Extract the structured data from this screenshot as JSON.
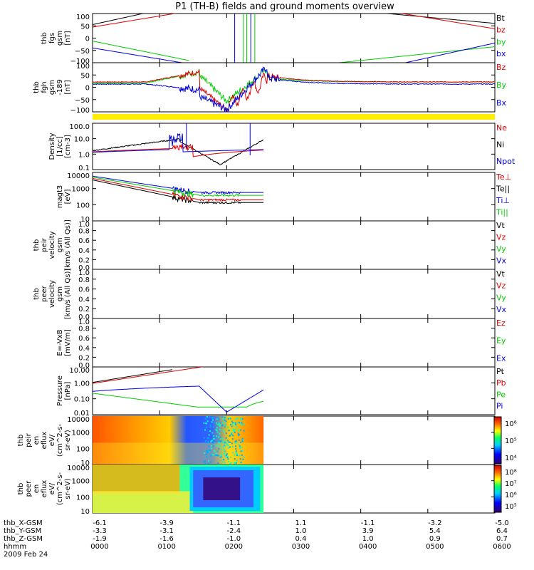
{
  "title": "P1 (TH-B) fields and ground moments overview",
  "date_label": "2009 Feb 24",
  "colors": {
    "black": "#000000",
    "red": "#dd0000",
    "green": "#00cc00",
    "blue": "#0000dd",
    "yellow": "#ffee00"
  },
  "chart_data": [
    {
      "type": "line",
      "panel": "fgs",
      "ylabel": [
        "thb",
        "fgs",
        "gsm",
        "[nT]"
      ],
      "yticks": [
        "100",
        "50",
        "0",
        "−50",
        "−100"
      ],
      "ylim": [
        -100,
        100
      ],
      "legend": [
        {
          "label": "Bt",
          "color": "#000000"
        },
        {
          "label": "bz",
          "color": "#dd0000"
        },
        {
          "label": "by",
          "color": "#00cc00"
        },
        {
          "label": "bx",
          "color": "#0000dd"
        }
      ]
    },
    {
      "type": "line",
      "panel": "fgh",
      "ylabel": [
        "thb",
        "fgh",
        "gsm",
        "-189",
        "[nT]"
      ],
      "yticks": [
        "100",
        "50",
        "0",
        "−50",
        "−100"
      ],
      "ylim": [
        -130,
        100
      ],
      "legend": [
        {
          "label": "Bz",
          "color": "#dd0000"
        },
        {
          "label": "By",
          "color": "#00cc00"
        },
        {
          "label": "Bx",
          "color": "#0000dd"
        }
      ]
    },
    {
      "type": "line",
      "panel": "density",
      "ylabel": [
        "Density",
        "[1/cc]",
        "[cm-3]"
      ],
      "yticks": [
        "100.0",
        "10.0",
        "1.0",
        "0.1"
      ],
      "ylim": [
        0.05,
        200
      ],
      "log": true,
      "legend": [
        {
          "label": "Ne",
          "color": "#dd0000"
        },
        {
          "label": "Ni",
          "color": "#000000"
        },
        {
          "label": "Npot",
          "color": "#0000dd"
        }
      ]
    },
    {
      "type": "line",
      "panel": "temperature",
      "ylabel": [
        "magt3",
        "[eV]"
      ],
      "yticks": [
        "10000",
        "1000",
        "100",
        "10"
      ],
      "ylim": [
        10,
        12000
      ],
      "log": true,
      "legend": [
        {
          "label": "Te⊥",
          "color": "#dd0000"
        },
        {
          "label": "Te||",
          "color": "#000000"
        },
        {
          "label": "Ti⊥",
          "color": "#0000dd"
        },
        {
          "label": "Ti||",
          "color": "#00cc00"
        }
      ]
    },
    {
      "type": "line",
      "panel": "peir_velocity",
      "ylabel": [
        "thb",
        "peir",
        "velocity",
        "gsm",
        "[km/s (All Qs)]"
      ],
      "yticks": [
        "1.0",
        "0.8",
        "0.6",
        "0.4",
        "0.2",
        "0.0"
      ],
      "ylim": [
        0,
        1
      ],
      "legend": [
        {
          "label": "Vt",
          "color": "#000000"
        },
        {
          "label": "Vz",
          "color": "#dd0000"
        },
        {
          "label": "Vy",
          "color": "#00cc00"
        },
        {
          "label": "Vx",
          "color": "#0000dd"
        }
      ]
    },
    {
      "type": "line",
      "panel": "peer_velocity",
      "ylabel": [
        "thb",
        "peer",
        "velocity",
        "gsm",
        "[km/s (All Qs)]"
      ],
      "yticks": [
        "1.0",
        "0.8",
        "0.6",
        "0.4",
        "0.2",
        "0.0"
      ],
      "ylim": [
        0,
        1
      ],
      "legend": [
        {
          "label": "Vt",
          "color": "#000000"
        },
        {
          "label": "Vz",
          "color": "#dd0000"
        },
        {
          "label": "Vy",
          "color": "#00cc00"
        },
        {
          "label": "Vx",
          "color": "#0000dd"
        }
      ]
    },
    {
      "type": "line",
      "panel": "efield",
      "ylabel": [
        "E=-VxB",
        "[mV/m]"
      ],
      "yticks": [
        "1.0",
        "0.8",
        "0.6",
        "0.4",
        "0.2",
        "0.0"
      ],
      "ylim": [
        0,
        1
      ],
      "legend": [
        {
          "label": "Ez",
          "color": "#dd0000"
        },
        {
          "label": "Ey",
          "color": "#00cc00"
        },
        {
          "label": "Ex",
          "color": "#0000dd"
        }
      ]
    },
    {
      "type": "line",
      "panel": "pressure",
      "ylabel": [
        "Pressure",
        "[nPa]"
      ],
      "yticks": [
        "10.00",
        "1.00",
        "0.10",
        "0.01"
      ],
      "ylim": [
        0.005,
        30
      ],
      "log": true,
      "legend": [
        {
          "label": "Pt",
          "color": "#000000"
        },
        {
          "label": "Pb",
          "color": "#dd0000"
        },
        {
          "label": "Pe",
          "color": "#00cc00"
        },
        {
          "label": "Pi",
          "color": "#0000dd"
        }
      ]
    },
    {
      "type": "heatmap",
      "panel": "peir_eflux",
      "ylabel": [
        "thb",
        "peir",
        "en",
        "eflux",
        "eV/",
        "(cm^2-s-",
        "sr-eV)"
      ],
      "yticks": [
        "10000",
        "1000",
        "100",
        "10"
      ],
      "log": true,
      "colorbar_ticks": [
        "10⁶",
        "10⁵",
        "10⁴"
      ]
    },
    {
      "type": "heatmap",
      "panel": "peer_eflux",
      "ylabel": [
        "thb",
        "peer",
        "en",
        "eflux",
        "eV/",
        "(cm^2-s-",
        "sr-eV)"
      ],
      "yticks": [
        "10000",
        "1000",
        "100",
        "10"
      ],
      "log": true,
      "colorbar_ticks": [
        "10⁸",
        "10⁷",
        "10⁶",
        "10⁵"
      ]
    }
  ],
  "x_axis": {
    "row_labels": [
      "thb_X-GSM",
      "thb_Y-GSM",
      "thb_Z-GSM",
      "hhmm"
    ],
    "ticks": [
      {
        "x": "-6.1",
        "y": "-3.3",
        "z": "-1.9",
        "t": "0000"
      },
      {
        "x": "-3.9",
        "y": "-3.1",
        "z": "-1.6",
        "t": "0100"
      },
      {
        "x": "-1.1",
        "y": "-2.4",
        "z": "-1.0",
        "t": "0200"
      },
      {
        "x": "1.1",
        "y": "1.0",
        "z": "0.4",
        "t": "0300"
      },
      {
        "x": "-1.1",
        "y": "3.9",
        "z": "1.0",
        "t": "0400"
      },
      {
        "x": "-3.2",
        "y": "5.4",
        "z": "0.9",
        "t": "0500"
      },
      {
        "x": "-5.0",
        "y": "6.4",
        "z": "0.7",
        "t": "0600"
      }
    ]
  }
}
